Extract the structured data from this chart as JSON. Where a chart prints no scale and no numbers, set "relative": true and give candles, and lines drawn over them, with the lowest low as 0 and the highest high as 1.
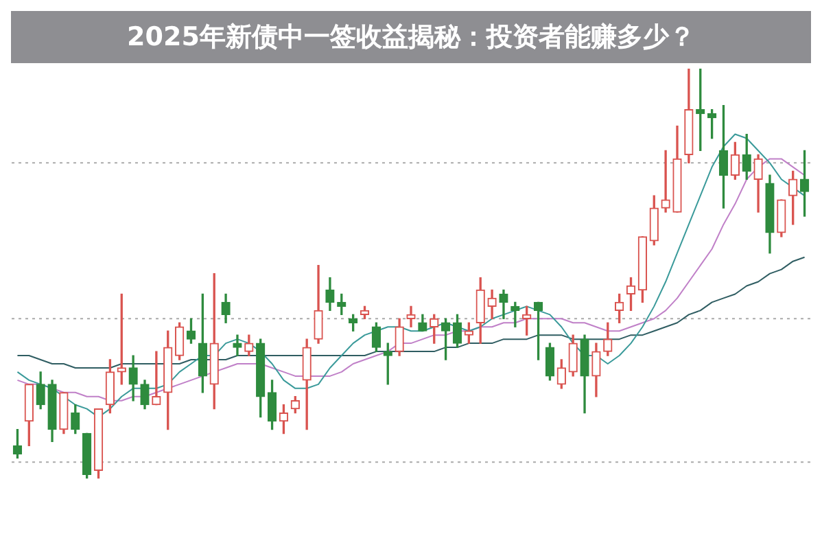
{
  "chart_data": {
    "type": "candlestick",
    "title": "2025年新债中一签收益揭秘：投资者能赚多少？",
    "relative": true,
    "legend": false,
    "ref_lines": [
      {
        "axis": "y",
        "value": 0.77,
        "color": "#aaaaaa",
        "line_style": "dotted"
      },
      {
        "axis": "y",
        "value": 0.39,
        "color": "#aaaaaa",
        "line_style": "dotted"
      },
      {
        "axis": "y",
        "value": 0.04,
        "color": "#aaaaaa",
        "line_style": "dotted"
      }
    ],
    "categories": [
      null,
      null,
      null,
      null,
      null,
      null,
      null,
      null,
      null,
      null,
      null,
      null,
      null,
      null,
      null,
      null,
      null,
      null,
      null,
      null,
      null,
      null,
      null,
      null,
      null,
      null,
      null,
      null,
      null,
      null,
      null,
      null,
      null,
      null,
      null,
      null,
      null,
      null,
      null,
      null,
      null,
      null,
      null,
      null,
      null,
      null,
      null,
      null,
      null,
      null,
      null,
      null,
      null,
      null,
      null,
      null,
      null,
      null,
      null,
      null,
      null,
      null,
      null,
      null,
      null,
      null,
      null,
      null,
      null
    ],
    "ohlc": [
      [
        0.08,
        0.12,
        0.05,
        0.06
      ],
      [
        0.14,
        0.23,
        0.08,
        0.23
      ],
      [
        0.23,
        0.26,
        0.17,
        0.18
      ],
      [
        0.23,
        0.24,
        0.09,
        0.12
      ],
      [
        0.12,
        0.21,
        0.11,
        0.21
      ],
      [
        0.16,
        0.18,
        0.11,
        0.12
      ],
      [
        0.11,
        0.11,
        0.0,
        0.01
      ],
      [
        0.02,
        0.17,
        0.0,
        0.17
      ],
      [
        0.18,
        0.29,
        0.16,
        0.26
      ],
      [
        0.26,
        0.45,
        0.23,
        0.27
      ],
      [
        0.27,
        0.3,
        0.19,
        0.23
      ],
      [
        0.23,
        0.24,
        0.17,
        0.18
      ],
      [
        0.18,
        0.31,
        0.18,
        0.2
      ],
      [
        0.21,
        0.36,
        0.12,
        0.32
      ],
      [
        0.3,
        0.38,
        0.29,
        0.37
      ],
      [
        0.36,
        0.39,
        0.33,
        0.34
      ],
      [
        0.33,
        0.45,
        0.21,
        0.25
      ],
      [
        0.23,
        0.5,
        0.17,
        0.33
      ],
      [
        0.43,
        0.45,
        0.38,
        0.4
      ],
      [
        0.33,
        0.35,
        0.3,
        0.32
      ],
      [
        0.31,
        0.35,
        0.3,
        0.33
      ],
      [
        0.33,
        0.34,
        0.15,
        0.2
      ],
      [
        0.21,
        0.24,
        0.12,
        0.14
      ],
      [
        0.14,
        0.18,
        0.11,
        0.16
      ],
      [
        0.17,
        0.2,
        0.16,
        0.19
      ],
      [
        0.24,
        0.34,
        0.12,
        0.32
      ],
      [
        0.34,
        0.52,
        0.33,
        0.41
      ],
      [
        0.46,
        0.49,
        0.41,
        0.43
      ],
      [
        0.43,
        0.45,
        0.4,
        0.42
      ],
      [
        0.39,
        0.4,
        0.36,
        0.38
      ],
      [
        0.4,
        0.42,
        0.39,
        0.41
      ],
      [
        0.37,
        0.38,
        0.31,
        0.32
      ],
      [
        0.31,
        0.33,
        0.23,
        0.3
      ],
      [
        0.31,
        0.39,
        0.3,
        0.37
      ],
      [
        0.39,
        0.42,
        0.37,
        0.4
      ],
      [
        0.38,
        0.4,
        0.36,
        0.36
      ],
      [
        0.37,
        0.4,
        0.33,
        0.39
      ],
      [
        0.38,
        0.39,
        0.29,
        0.36
      ],
      [
        0.38,
        0.4,
        0.32,
        0.33
      ],
      [
        0.35,
        0.38,
        0.33,
        0.36
      ],
      [
        0.38,
        0.49,
        0.33,
        0.46
      ],
      [
        0.42,
        0.46,
        0.39,
        0.44
      ],
      [
        0.45,
        0.46,
        0.39,
        0.43
      ],
      [
        0.42,
        0.43,
        0.37,
        0.41
      ],
      [
        0.39,
        0.42,
        0.35,
        0.4
      ],
      [
        0.43,
        0.43,
        0.29,
        0.41
      ],
      [
        0.32,
        0.33,
        0.24,
        0.25
      ],
      [
        0.23,
        0.29,
        0.22,
        0.27
      ],
      [
        0.26,
        0.35,
        0.25,
        0.33
      ],
      [
        0.34,
        0.35,
        0.16,
        0.25
      ],
      [
        0.25,
        0.33,
        0.2,
        0.31
      ],
      [
        0.31,
        0.38,
        0.3,
        0.34
      ],
      [
        0.41,
        0.45,
        0.38,
        0.43
      ],
      [
        0.45,
        0.49,
        0.41,
        0.47
      ],
      [
        0.46,
        0.59,
        0.43,
        0.59
      ],
      [
        0.58,
        0.69,
        0.57,
        0.66
      ],
      [
        0.66,
        0.8,
        0.65,
        0.68
      ],
      [
        0.65,
        0.86,
        0.65,
        0.78
      ],
      [
        0.79,
        1.0,
        0.77,
        0.9
      ],
      [
        0.9,
        1.0,
        0.8,
        0.89
      ],
      [
        0.89,
        0.9,
        0.83,
        0.88
      ],
      [
        0.8,
        0.91,
        0.66,
        0.74
      ],
      [
        0.74,
        0.82,
        0.73,
        0.79
      ],
      [
        0.79,
        0.84,
        0.73,
        0.75
      ],
      [
        0.73,
        0.79,
        0.65,
        0.78
      ],
      [
        0.72,
        0.74,
        0.55,
        0.6
      ],
      [
        0.6,
        0.68,
        0.59,
        0.68
      ],
      [
        0.69,
        0.75,
        0.62,
        0.73
      ],
      [
        0.73,
        0.8,
        0.64,
        0.7
      ]
    ],
    "colors": [
      "#2e8b3e",
      "#d9534f",
      "#2e8b3e",
      "#2e8b3e",
      "#d9534f",
      "#2e8b3e",
      "#2e8b3e",
      "#d9534f",
      "#d9534f",
      "#d9534f",
      "#2e8b3e",
      "#2e8b3e",
      "#d9534f",
      "#d9534f",
      "#d9534f",
      "#2e8b3e",
      "#2e8b3e",
      "#d9534f",
      "#2e8b3e",
      "#2e8b3e",
      "#d9534f",
      "#2e8b3e",
      "#2e8b3e",
      "#d9534f",
      "#d9534f",
      "#d9534f",
      "#d9534f",
      "#2e8b3e",
      "#2e8b3e",
      "#2e8b3e",
      "#d9534f",
      "#2e8b3e",
      "#2e8b3e",
      "#d9534f",
      "#d9534f",
      "#2e8b3e",
      "#d9534f",
      "#2e8b3e",
      "#2e8b3e",
      "#d9534f",
      "#d9534f",
      "#d9534f",
      "#2e8b3e",
      "#2e8b3e",
      "#d9534f",
      "#2e8b3e",
      "#2e8b3e",
      "#d9534f",
      "#d9534f",
      "#2e8b3e",
      "#d9534f",
      "#d9534f",
      "#d9534f",
      "#d9534f",
      "#d9534f",
      "#d9534f",
      "#d9534f",
      "#d9534f",
      "#d9534f",
      "#2e8b3e",
      "#2e8b3e",
      "#2e8b3e",
      "#d9534f",
      "#2e8b3e",
      "#d9534f",
      "#2e8b3e",
      "#d9534f",
      "#d9534f",
      "#2e8b3e"
    ],
    "series": [
      {
        "type": "line",
        "color": "#3a9a9a",
        "values": [
          0.26,
          0.24,
          0.23,
          0.22,
          0.2,
          0.18,
          0.17,
          0.15,
          0.17,
          0.2,
          0.22,
          0.22,
          0.22,
          0.23,
          0.26,
          0.28,
          0.3,
          0.3,
          0.33,
          0.34,
          0.33,
          0.31,
          0.28,
          0.24,
          0.22,
          0.22,
          0.23,
          0.27,
          0.3,
          0.33,
          0.35,
          0.36,
          0.37,
          0.37,
          0.36,
          0.36,
          0.37,
          0.38,
          0.37,
          0.36,
          0.37,
          0.39,
          0.4,
          0.41,
          0.42,
          0.41,
          0.4,
          0.37,
          0.33,
          0.3,
          0.3,
          0.28,
          0.3,
          0.33,
          0.37,
          0.42,
          0.48,
          0.55,
          0.62,
          0.69,
          0.76,
          0.81,
          0.84,
          0.83,
          0.8,
          0.77,
          0.73,
          0.71,
          0.69
        ]
      },
      {
        "type": "line",
        "color": "#c080c8",
        "values": [
          0.24,
          0.23,
          0.23,
          0.22,
          0.21,
          0.21,
          0.2,
          0.2,
          0.19,
          0.19,
          0.2,
          0.2,
          0.21,
          0.22,
          0.23,
          0.24,
          0.25,
          0.26,
          0.27,
          0.28,
          0.28,
          0.28,
          0.27,
          0.26,
          0.25,
          0.25,
          0.25,
          0.25,
          0.26,
          0.28,
          0.29,
          0.3,
          0.31,
          0.33,
          0.33,
          0.34,
          0.35,
          0.35,
          0.36,
          0.36,
          0.37,
          0.37,
          0.38,
          0.38,
          0.39,
          0.39,
          0.39,
          0.39,
          0.38,
          0.38,
          0.37,
          0.36,
          0.36,
          0.37,
          0.38,
          0.39,
          0.41,
          0.44,
          0.48,
          0.52,
          0.56,
          0.62,
          0.67,
          0.73,
          0.76,
          0.78,
          0.78,
          0.76,
          0.74
        ]
      },
      {
        "type": "line",
        "color": "#2f5d62",
        "values": [
          0.3,
          0.3,
          0.29,
          0.28,
          0.28,
          0.27,
          0.27,
          0.27,
          0.27,
          0.28,
          0.28,
          0.28,
          0.28,
          0.28,
          0.28,
          0.29,
          0.29,
          0.29,
          0.29,
          0.3,
          0.3,
          0.3,
          0.3,
          0.3,
          0.3,
          0.3,
          0.3,
          0.3,
          0.3,
          0.3,
          0.3,
          0.31,
          0.31,
          0.31,
          0.31,
          0.31,
          0.31,
          0.32,
          0.32,
          0.33,
          0.33,
          0.33,
          0.34,
          0.34,
          0.34,
          0.35,
          0.35,
          0.35,
          0.34,
          0.34,
          0.34,
          0.34,
          0.34,
          0.35,
          0.35,
          0.36,
          0.37,
          0.38,
          0.4,
          0.41,
          0.43,
          0.44,
          0.45,
          0.47,
          0.48,
          0.5,
          0.51,
          0.53,
          0.54
        ]
      }
    ]
  }
}
